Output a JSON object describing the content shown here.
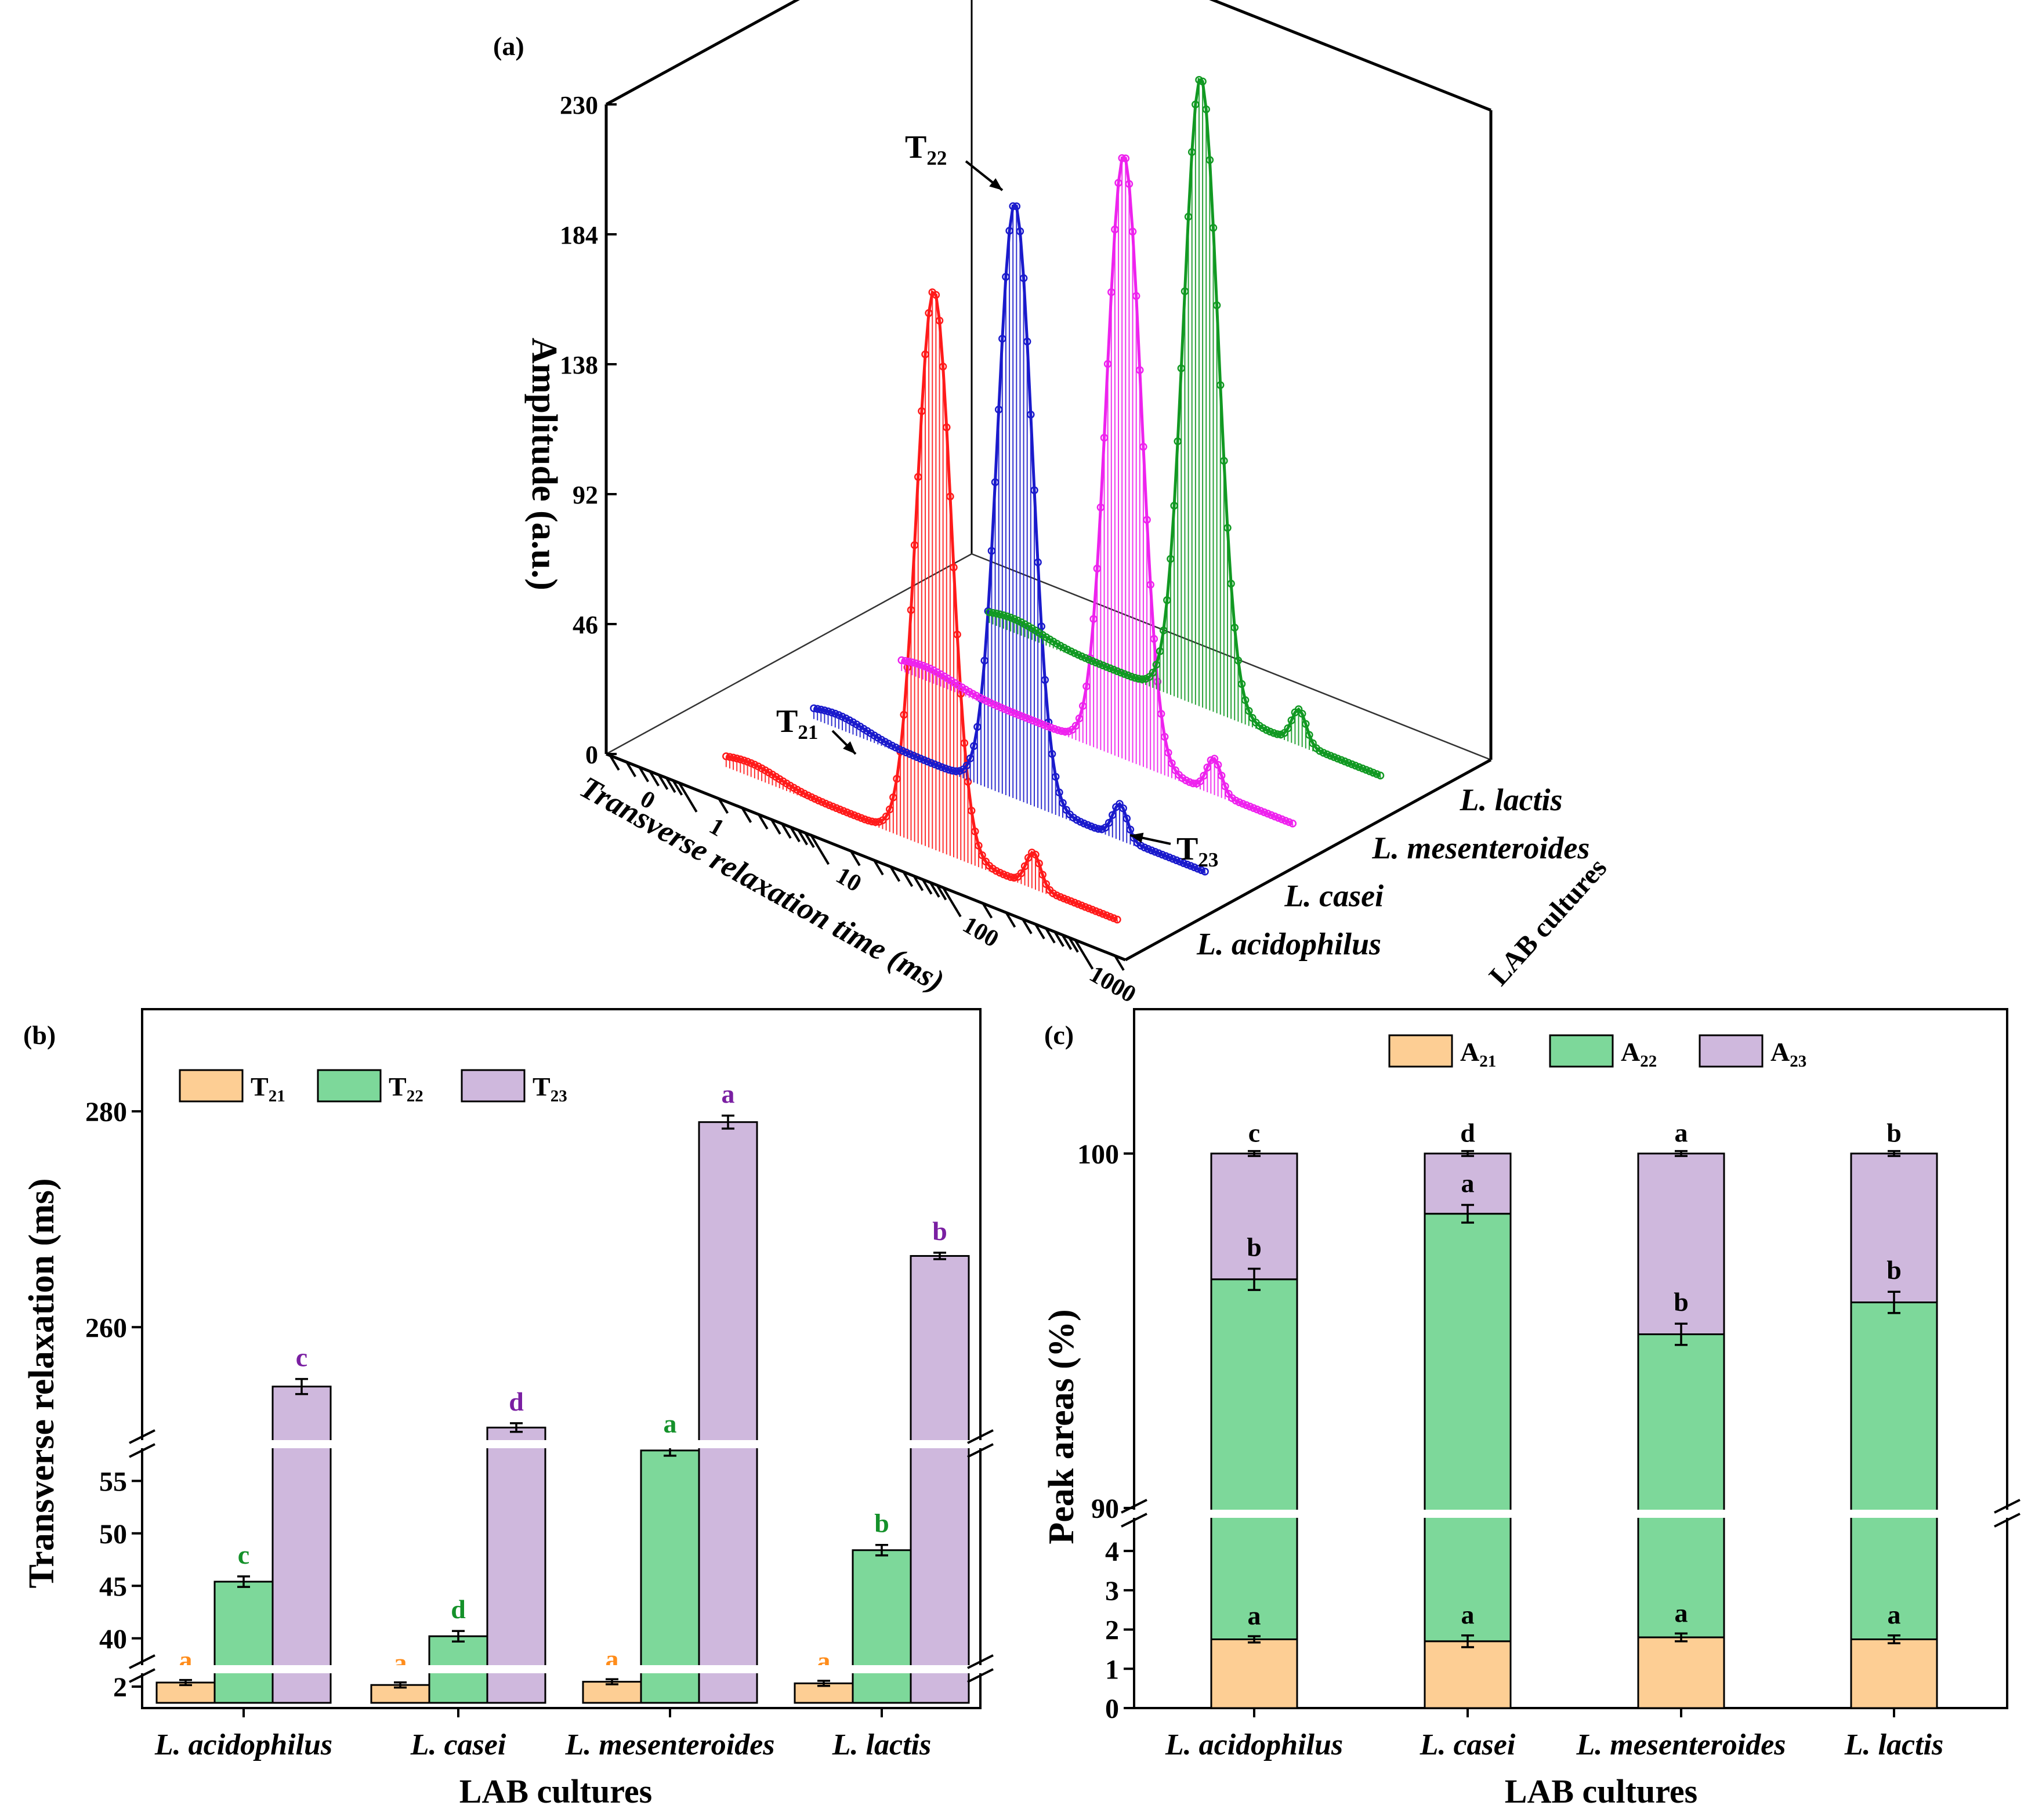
{
  "chart_data": [
    {
      "id": "a",
      "panel_label": "(a)",
      "type": "line",
      "subtype": "3d-waterfall",
      "xlabel": "Transverse relaxation time (ms)",
      "x_scale": "log",
      "x_ticks": [
        "0",
        "1",
        "10",
        "100",
        "1000"
      ],
      "ylabel": "LAB cultures",
      "zlabel": "Amplitude (a.u.)",
      "z_ticks": [
        "0",
        "46",
        "92",
        "138",
        "184",
        "230"
      ],
      "zlim": [
        0,
        230
      ],
      "series": [
        {
          "name": "L. acidophilus",
          "color": "#ff1a1a",
          "peaks": [
            {
              "t": 1.8,
              "amp": 4
            },
            {
              "t": 45,
              "amp": 197
            },
            {
              "t": 255,
              "amp": 12
            }
          ]
        },
        {
          "name": "L. casei",
          "color": "#1a1acc",
          "peaks": [
            {
              "t": 1.8,
              "amp": 4
            },
            {
              "t": 40,
              "amp": 210
            },
            {
              "t": 250,
              "amp": 12
            }
          ]
        },
        {
          "name": "L. mesenteroides",
          "color": "#ee22ee",
          "peaks": [
            {
              "t": 1.8,
              "amp": 4
            },
            {
              "t": 58,
              "amp": 213
            },
            {
              "t": 279,
              "amp": 12
            }
          ]
        },
        {
          "name": "L. lactis",
          "color": "#119922",
          "peaks": [
            {
              "t": 1.8,
              "amp": 4
            },
            {
              "t": 48,
              "amp": 222
            },
            {
              "t": 266,
              "amp": 12
            }
          ]
        }
      ],
      "annotations": [
        {
          "base": "T",
          "sub": "22"
        },
        {
          "base": "T",
          "sub": "21"
        },
        {
          "base": "T",
          "sub": "23"
        }
      ]
    },
    {
      "id": "b",
      "panel_label": "(b)",
      "type": "bar",
      "categories": [
        "L. acidophilus",
        "L. casei",
        "L. mesenteroides",
        "L. lactis"
      ],
      "xlabel": "LAB cultures",
      "ylabel": "Transverse relaxation (ms)",
      "y_ticks": [
        "2",
        "40",
        "45",
        "50",
        "55",
        "260",
        "280"
      ],
      "y_segments": [
        [
          1.8,
          2.2
        ],
        [
          37.5,
          58.5
        ],
        [
          249,
          290
        ]
      ],
      "series": [
        {
          "name": "T21",
          "legend_base": "T",
          "legend_sub": "21",
          "color": "#fdce94",
          "letter_color": "#ff8c1a",
          "values": [
            2.05,
            2.02,
            2.06,
            2.04
          ],
          "errors": [
            0.01,
            0.01,
            0.01,
            0.01
          ],
          "letters": [
            "a",
            "a",
            "a",
            "a"
          ]
        },
        {
          "name": "T22",
          "legend_base": "T",
          "legend_sub": "22",
          "color": "#7dd89a",
          "letter_color": "#14912a",
          "values": [
            45.4,
            40.2,
            57.9,
            48.4
          ],
          "errors": [
            0.5,
            0.5,
            0.5,
            0.5
          ],
          "letters": [
            "c",
            "d",
            "a",
            "b"
          ]
        },
        {
          "name": "T23",
          "legend_base": "T",
          "legend_sub": "23",
          "color": "#cfb8dd",
          "letter_color": "#7a1fa2",
          "values": [
            254.5,
            250.7,
            279.0,
            266.6
          ],
          "errors": [
            0.7,
            0.4,
            0.6,
            0.3
          ],
          "letters": [
            "c",
            "d",
            "a",
            "b"
          ]
        }
      ]
    },
    {
      "id": "c",
      "panel_label": "(c)",
      "type": "bar",
      "subtype": "stacked",
      "categories": [
        "L. acidophilus",
        "L. casei",
        "L. mesenteroides",
        "L. lactis"
      ],
      "xlabel": "LAB cultures",
      "ylabel": "Peak areas (%)",
      "y_ticks": [
        "0",
        "1",
        "2",
        "3",
        "4",
        "90",
        "100"
      ],
      "y_segments": [
        [
          0,
          4.8
        ],
        [
          90,
          103.5
        ]
      ],
      "series": [
        {
          "name": "A21",
          "legend_base": "A",
          "legend_sub": "21",
          "color": "#fdce94",
          "values": [
            1.75,
            1.7,
            1.8,
            1.75
          ],
          "errors": [
            0.08,
            0.15,
            0.1,
            0.1
          ],
          "letters": [
            "a",
            "a",
            "a",
            "a"
          ]
        },
        {
          "name": "A22",
          "legend_base": "A",
          "legend_sub": "22",
          "color": "#7dd89a",
          "cumulative_top": [
            96.45,
            98.3,
            94.9,
            95.8
          ],
          "errors": [
            0.3,
            0.25,
            0.3,
            0.3
          ],
          "letters": [
            "b",
            "a",
            "b",
            "b"
          ]
        },
        {
          "name": "A23",
          "legend_base": "A",
          "legend_sub": "23",
          "color": "#cfb8dd",
          "cumulative_top": [
            100,
            100,
            100,
            100
          ],
          "errors": [
            0.07,
            0.07,
            0.07,
            0.07
          ],
          "letters": [
            "c",
            "d",
            "a",
            "b"
          ]
        }
      ]
    }
  ]
}
